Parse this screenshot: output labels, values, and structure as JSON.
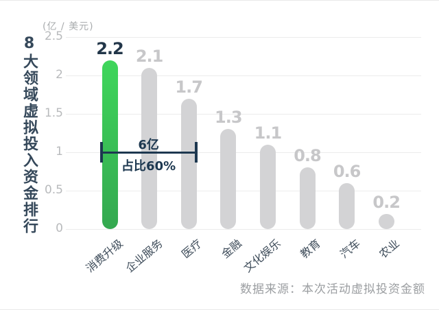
{
  "chart_data": {
    "type": "bar",
    "title": "8大领域虚拟投入资金排行",
    "unit_label": "(亿 / 美元)",
    "categories": [
      "消费升级",
      "企业服务",
      "医疗",
      "金融",
      "文化娱乐",
      "教育",
      "汽车",
      "农业"
    ],
    "values": [
      2.2,
      2.1,
      1.7,
      1.3,
      1.1,
      0.8,
      0.6,
      0.2
    ],
    "yticks": [
      0,
      0.5,
      1,
      1.5,
      2,
      2.5
    ],
    "ylim": [
      0,
      2.5
    ],
    "grid": true,
    "legend": "none",
    "highlight_index": 0,
    "annotation": {
      "label": "6亿",
      "sublabel": "占比60%",
      "from_category": "消费升级",
      "to_category": "医疗",
      "y_value": 1.0
    },
    "source": "数据来源：本次活动虚拟投资金额",
    "colors": {
      "highlight_bar_top": "#3fd65b",
      "highlight_bar_bottom": "#34a850",
      "bar": "#d3d3d5",
      "value_label_highlight": "#223649",
      "value_label": "#c7c7c9",
      "annotation": "#1d3850",
      "title": "#35485a",
      "grid": "#ececec"
    }
  }
}
